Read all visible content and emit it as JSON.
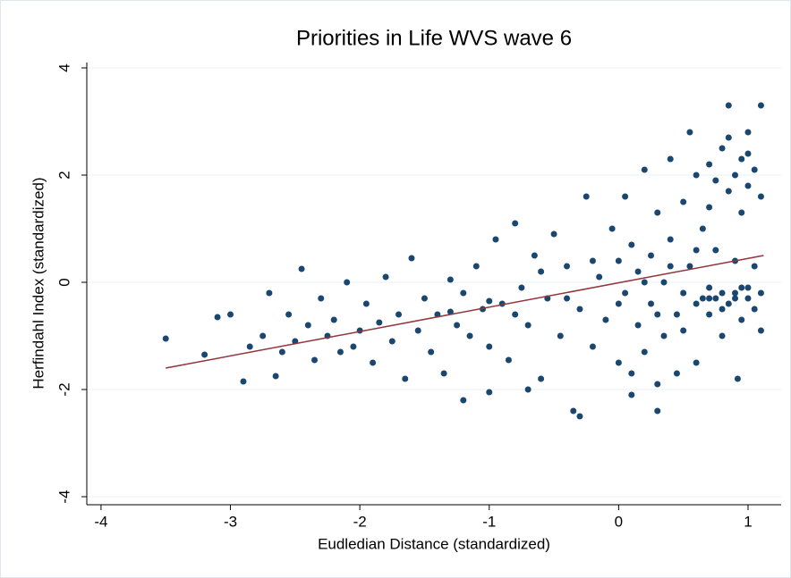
{
  "chart_data": {
    "type": "scatter",
    "title": "Priorities in Life WVS wave 6",
    "xlabel": "Eudledian Distance (standardized)",
    "ylabel": "Herfindahl Index (standardized)",
    "xlim": [
      -4.11,
      1.256
    ],
    "ylim": [
      -4.15,
      4.1
    ],
    "xticks": [
      -4,
      -3,
      -2,
      -1,
      0,
      1
    ],
    "yticks": [
      -4,
      -2,
      0,
      2,
      4
    ],
    "grid": true,
    "series": [
      {
        "color": "#1a476f",
        "x": [
          -3.5,
          -3.2,
          -3.1,
          -3.0,
          -2.9,
          -2.85,
          -2.75,
          -2.7,
          -2.65,
          -2.6,
          -2.55,
          -2.5,
          -2.45,
          -2.4,
          -2.35,
          -2.3,
          -2.25,
          -2.2,
          -2.15,
          -2.1,
          -2.05,
          -2.0,
          -1.95,
          -1.9,
          -1.85,
          -1.8,
          -1.75,
          -1.7,
          -1.65,
          -1.6,
          -1.55,
          -1.5,
          -1.45,
          -1.4,
          -1.35,
          -1.3,
          -1.25,
          -1.2,
          -1.15,
          -1.1,
          -1.05,
          -1.0,
          -0.95,
          -0.9,
          -0.85,
          -0.8,
          -0.75,
          -0.7,
          -0.65,
          -0.6,
          -0.55,
          -0.5,
          -0.45,
          -0.4,
          -0.35,
          -0.3,
          -0.25,
          -0.2,
          -0.15,
          -0.1,
          -0.05,
          0.0,
          0.0,
          0.05,
          0.05,
          0.1,
          0.1,
          0.15,
          0.15,
          0.2,
          0.2,
          0.25,
          0.25,
          0.3,
          0.3,
          0.35,
          0.35,
          0.4,
          0.4,
          0.45,
          0.45,
          0.5,
          0.5,
          0.55,
          0.55,
          0.6,
          0.6,
          0.65,
          0.65,
          0.7,
          0.7,
          0.7,
          0.75,
          0.75,
          0.75,
          0.8,
          0.8,
          0.8,
          0.85,
          0.85,
          0.85,
          0.9,
          0.9,
          0.9,
          0.92,
          0.95,
          0.95,
          0.95,
          1.0,
          1.0,
          1.0,
          1.05,
          1.05,
          1.05,
          1.1,
          1.1,
          1.1,
          1.1,
          -1.3,
          -1.0,
          -0.8,
          -0.6,
          -0.4,
          -0.2,
          0.0,
          0.2,
          0.3,
          0.4,
          0.5,
          0.6,
          0.7,
          0.8,
          0.9,
          1.0,
          0.95,
          0.7,
          0.85,
          1.0,
          0.6,
          0.3,
          0.1,
          -0.3,
          -1.2,
          -1.0,
          -0.7
        ],
        "values": [
          -1.05,
          -1.35,
          -0.65,
          -0.6,
          -1.85,
          -1.2,
          -1.0,
          -0.2,
          -1.75,
          -1.3,
          -0.6,
          -1.1,
          0.25,
          -0.8,
          -1.45,
          -0.3,
          -1.0,
          -0.7,
          -1.3,
          0.0,
          -1.2,
          -0.9,
          -0.4,
          -1.5,
          -0.75,
          0.1,
          -1.1,
          -0.6,
          -1.8,
          0.45,
          -0.9,
          -0.3,
          -1.3,
          -0.6,
          -1.7,
          0.05,
          -0.8,
          -0.2,
          -1.0,
          0.3,
          -0.5,
          -1.2,
          0.8,
          -0.4,
          -1.45,
          1.1,
          -0.1,
          -0.8,
          0.5,
          -1.8,
          -0.3,
          0.9,
          -1.0,
          0.3,
          -2.4,
          -0.5,
          1.6,
          -1.2,
          0.1,
          -0.7,
          1.0,
          -1.5,
          0.4,
          -0.2,
          1.6,
          -2.1,
          0.7,
          -0.8,
          0.2,
          2.1,
          -1.3,
          0.5,
          -0.4,
          1.3,
          -2.4,
          0.0,
          -1.0,
          2.3,
          0.8,
          -0.6,
          -1.7,
          1.5,
          -0.2,
          0.3,
          2.8,
          -0.4,
          -1.5,
          1.0,
          -0.3,
          2.2,
          -0.1,
          -0.6,
          1.9,
          -0.3,
          0.6,
          2.5,
          -0.2,
          -1.0,
          1.7,
          -0.4,
          3.3,
          2.0,
          -0.3,
          0.4,
          -1.8,
          2.3,
          -0.1,
          -0.7,
          1.8,
          -0.3,
          2.8,
          2.1,
          -0.5,
          0.3,
          1.6,
          -0.9,
          3.3,
          -0.2,
          -0.55,
          -0.35,
          -0.6,
          0.2,
          -0.3,
          0.4,
          -0.4,
          0.0,
          -0.6,
          0.3,
          -0.9,
          0.6,
          -0.3,
          -0.5,
          -0.2,
          -0.1,
          1.3,
          1.4,
          2.7,
          2.4,
          2.0,
          -1.9,
          -1.7,
          -2.5,
          -2.2,
          -2.05,
          -2.0
        ]
      }
    ],
    "fit": {
      "color": "#90353b",
      "x": [
        -3.5,
        1.12
      ],
      "values": [
        -1.6,
        0.5
      ]
    }
  }
}
